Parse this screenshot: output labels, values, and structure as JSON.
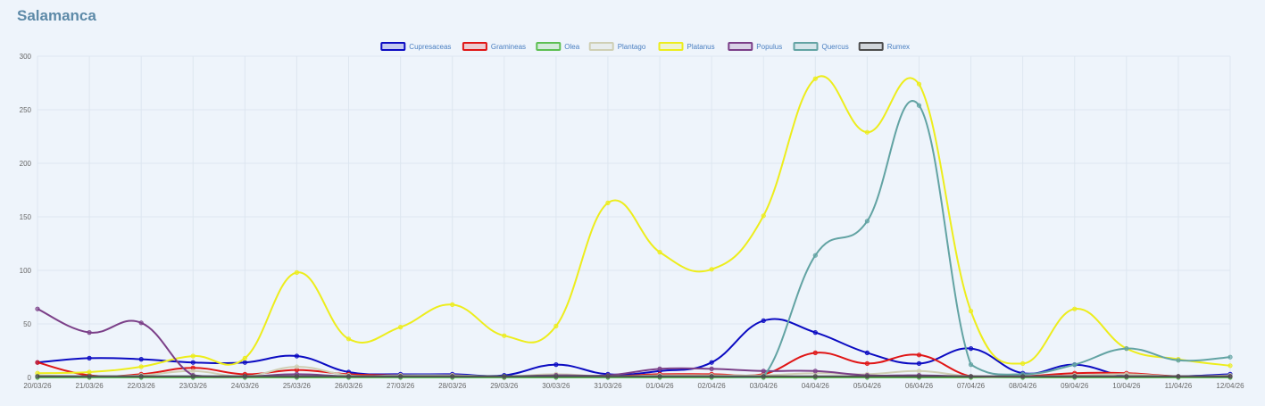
{
  "page": {
    "title": "Salamanca"
  },
  "chart_data": {
    "type": "line",
    "title": "Salamanca",
    "xlabel": "",
    "ylabel": "",
    "ylim": [
      0,
      300
    ],
    "yticks": [
      0,
      50,
      100,
      150,
      200,
      250,
      300
    ],
    "grid": true,
    "legend_position": "top-center",
    "categories": [
      "20/03/26",
      "21/03/26",
      "22/03/26",
      "23/03/26",
      "24/03/26",
      "25/03/26",
      "26/03/26",
      "27/03/26",
      "28/03/26",
      "29/03/26",
      "30/03/26",
      "31/03/26",
      "01/04/26",
      "02/04/26",
      "03/04/26",
      "04/04/26",
      "05/04/26",
      "06/04/26",
      "07/04/26",
      "08/04/26",
      "09/04/26",
      "10/04/26",
      "11/04/26",
      "12/04/26"
    ],
    "series": [
      {
        "name": "Cupresaceas",
        "color": "#0b0bc2",
        "values": [
          14,
          18,
          17,
          14,
          14,
          20,
          5,
          3,
          3,
          2,
          12,
          3,
          6,
          14,
          53,
          42,
          23,
          13,
          27,
          4,
          12,
          1,
          1,
          3
        ]
      },
      {
        "name": "Gramineas",
        "color": "#e01515",
        "values": [
          14,
          2,
          3,
          9,
          3,
          7,
          3,
          2,
          2,
          0,
          2,
          1,
          3,
          3,
          3,
          23,
          13,
          21,
          1,
          1,
          4,
          4,
          1,
          1
        ]
      },
      {
        "name": "Olea",
        "color": "#5cbf52",
        "values": [
          0,
          0,
          0,
          0,
          0,
          0,
          0,
          0,
          0,
          0,
          0,
          0,
          0,
          0,
          0,
          0,
          0,
          0,
          0,
          0,
          0,
          0,
          0,
          0
        ]
      },
      {
        "name": "Plantago",
        "color": "#cfcfb4",
        "values": [
          2,
          1,
          2,
          6,
          1,
          10,
          2,
          2,
          2,
          1,
          3,
          1,
          2,
          2,
          2,
          4,
          3,
          6,
          1,
          1,
          2,
          3,
          1,
          2
        ]
      },
      {
        "name": "Platanus",
        "color": "#eded1c",
        "values": [
          4,
          5,
          10,
          20,
          18,
          98,
          36,
          47,
          68,
          39,
          48,
          163,
          117,
          101,
          151,
          279,
          229,
          274,
          62,
          13,
          64,
          27,
          17,
          11
        ]
      },
      {
        "name": "Populus",
        "color": "#7b3f88",
        "values": [
          64,
          42,
          51,
          2,
          1,
          3,
          1,
          1,
          1,
          1,
          2,
          2,
          8,
          8,
          6,
          6,
          2,
          2,
          1,
          1,
          1,
          1,
          1,
          1
        ]
      },
      {
        "name": "Quercus",
        "color": "#62a3a3",
        "values": [
          1,
          1,
          1,
          1,
          1,
          1,
          1,
          1,
          1,
          1,
          1,
          1,
          1,
          1,
          1,
          114,
          146,
          254,
          12,
          3,
          12,
          27,
          16,
          19
        ]
      },
      {
        "name": "Rumex",
        "color": "#4d4d4d",
        "values": [
          1,
          1,
          1,
          1,
          1,
          1,
          1,
          1,
          1,
          1,
          1,
          1,
          1,
          1,
          1,
          1,
          1,
          1,
          1,
          1,
          1,
          1,
          1,
          1
        ]
      }
    ]
  }
}
